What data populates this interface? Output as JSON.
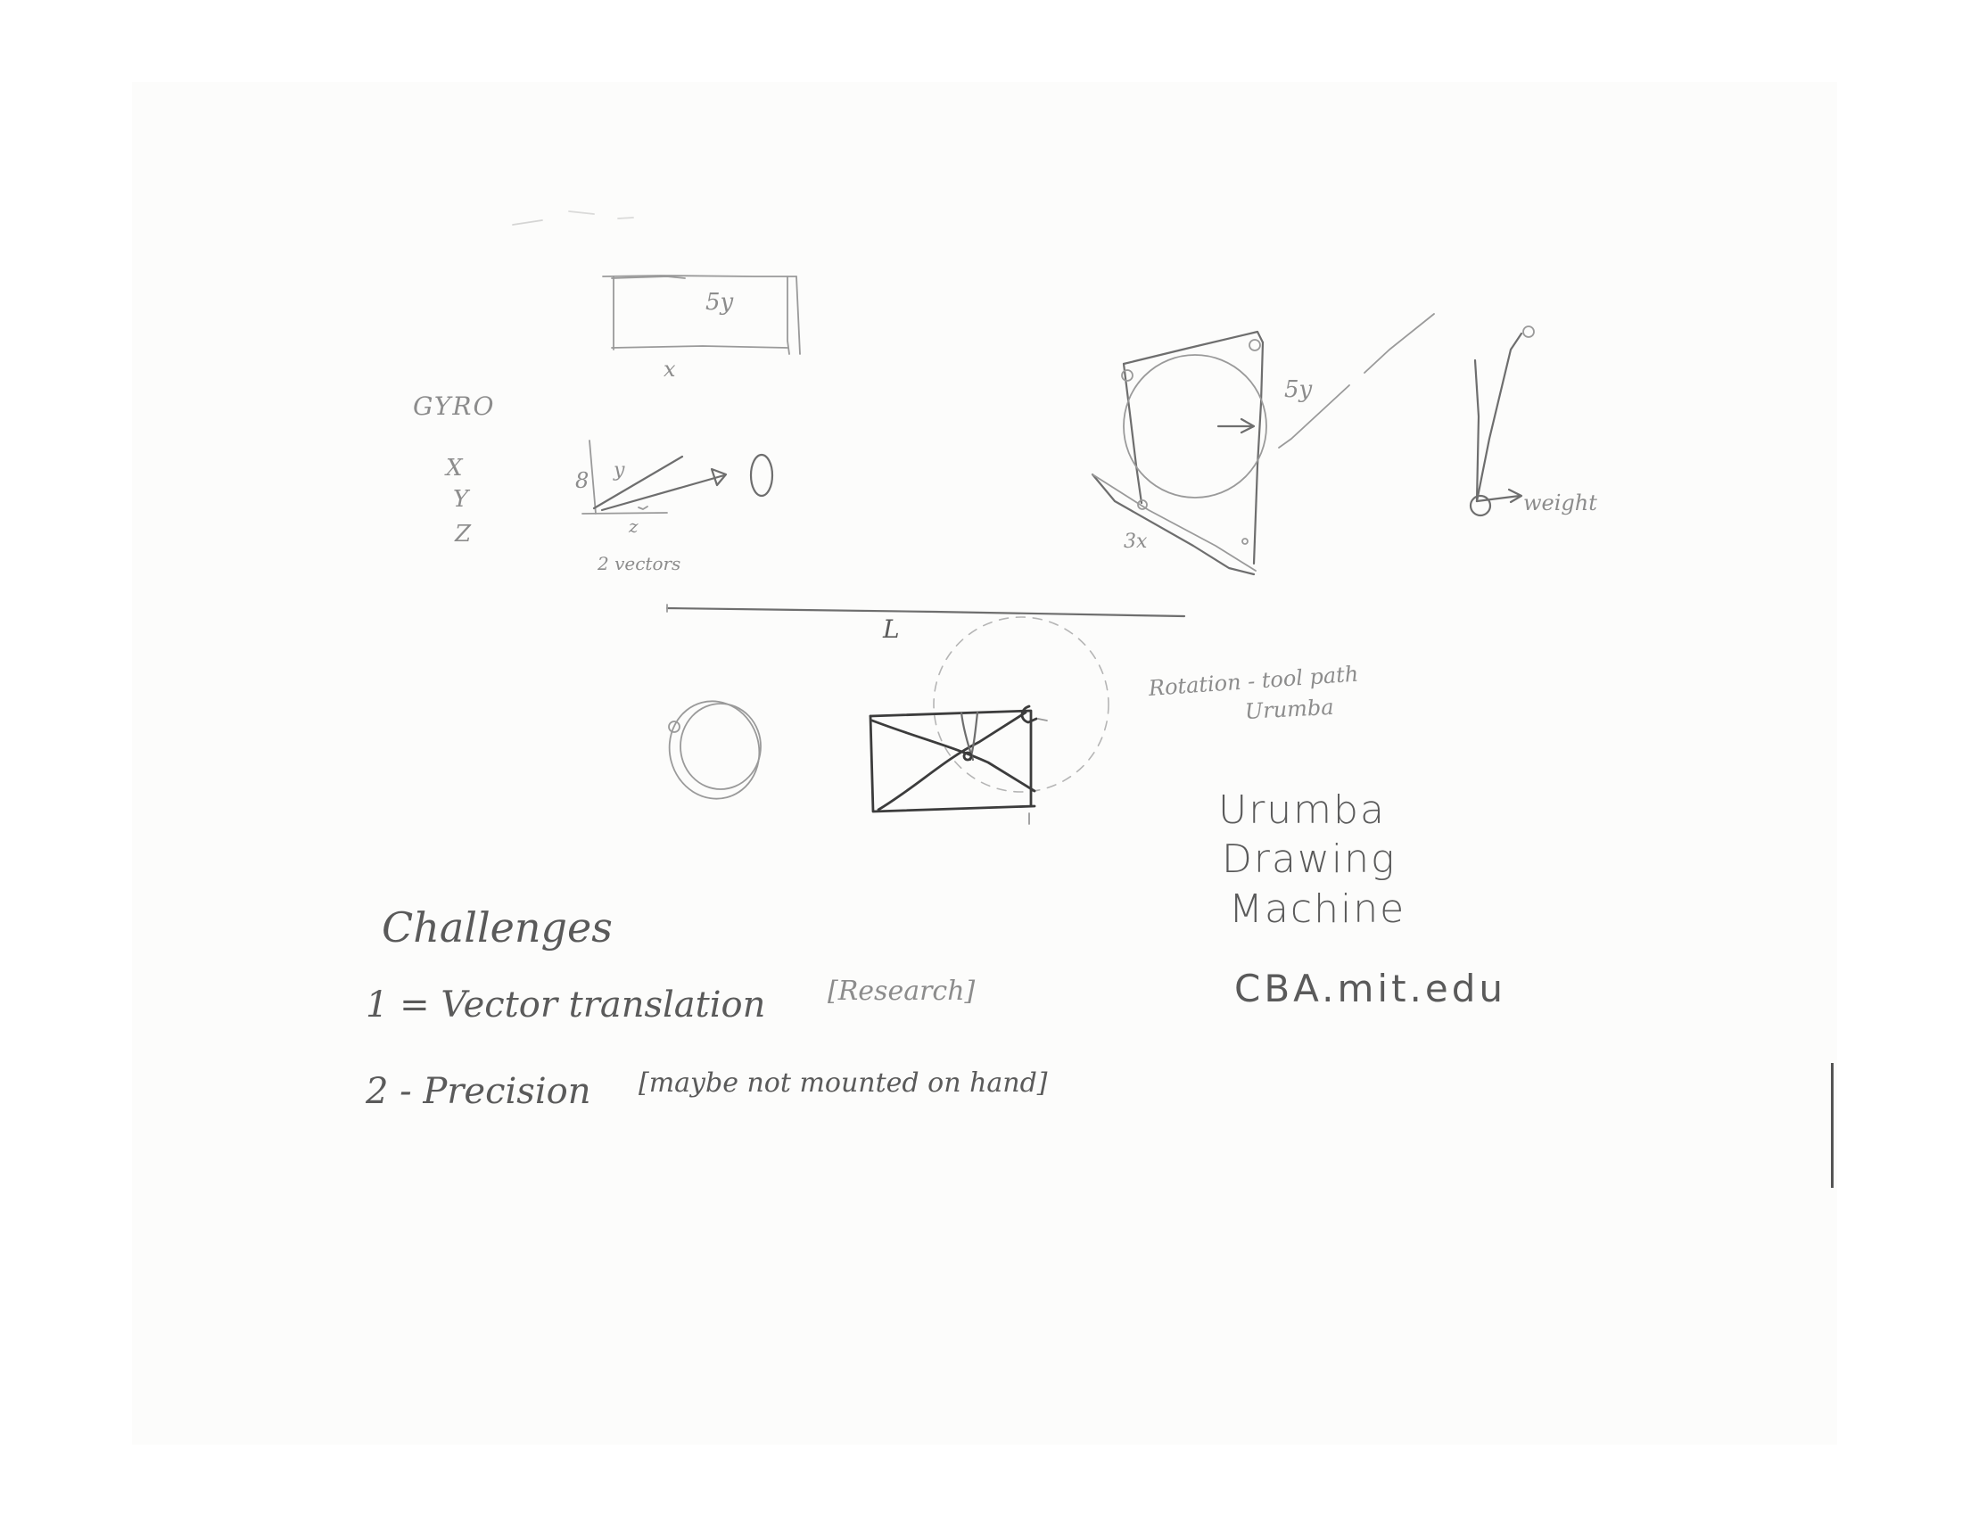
{
  "labels": {
    "rect_side": "5y",
    "rect_bottom": "x",
    "gyro": "GYRO",
    "axis_x": "X",
    "axis_y": "Y",
    "axis_z": "Z",
    "vec_left": "8",
    "vec_y": "y",
    "vec_z": "z",
    "vectors": "2 vectors",
    "plate_side": "5y",
    "plate_bottom": "3x",
    "weight": "weight",
    "L": "L",
    "rotation": "Rotation - tool path",
    "urumba_small": "Urumba"
  },
  "title": {
    "line1": "Urumba",
    "line2": "Drawing",
    "line3": "Machine",
    "url": "CBA.mit.edu"
  },
  "challenges": {
    "heading": "Challenges",
    "item1": "1 = Vector translation",
    "item1_note": "[Research]",
    "item2": "2 - Precision",
    "item2_note": "[maybe not mounted on hand]"
  },
  "colors": {
    "paper": "#fcfcfb",
    "pencil_dark": "#3c3c3c",
    "pencil_faint": "#9a9a9a"
  }
}
